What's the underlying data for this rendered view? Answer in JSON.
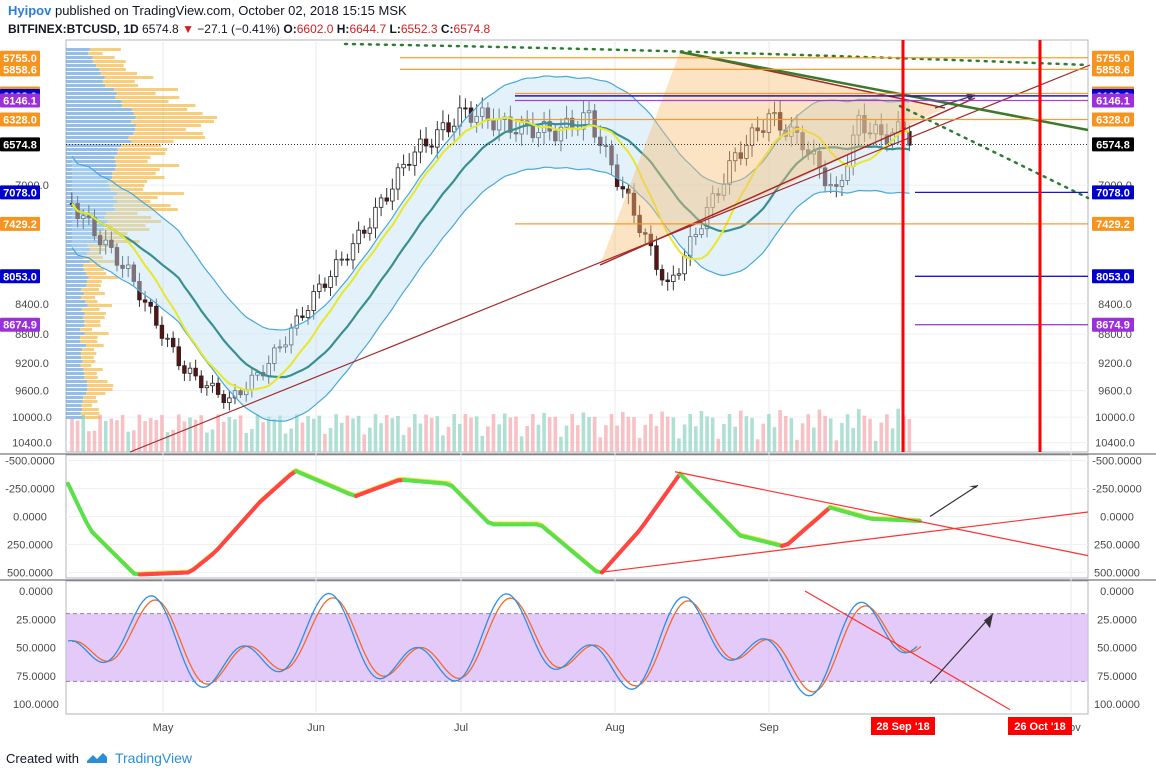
{
  "header": {
    "user": "Hyipov",
    "published": "published on TradingView.com, October 02, 2018 15:15 MSK",
    "symbol": "BITFINEX:BTCUSD, 1D",
    "last": "6574.8",
    "arrow": "▼",
    "change": "−27.1 (−0.41%)",
    "o_label": "O:",
    "o": "6602.0",
    "h_label": "H:",
    "h": "6644.7",
    "l_label": "L:",
    "l": "6552.3",
    "c_label": "C:",
    "c": "6574.8"
  },
  "footer": {
    "created": "Created with",
    "brand": "TradingView"
  },
  "colors": {
    "bull": "#26a69a",
    "bear": "#5d1212",
    "orange": "#f7941d",
    "red": "#ff0000",
    "navy": "#0000cc",
    "purple": "#9b30d9",
    "green": "#3c7a2a",
    "bbands": "#4aa8d8",
    "ema": "#e8e82a"
  },
  "chart_data": {
    "type": "candlestick",
    "x_axis": {
      "ticks": [
        "May",
        "Jun",
        "Jul",
        "Aug",
        "Sep",
        "Nov"
      ],
      "markers": [
        "28 Sep '18",
        "26 Oct '18"
      ]
    },
    "price_axis": {
      "scale": "log",
      "direction": "inverted",
      "ticks": [
        "7000.0",
        "8400.0",
        "8800.0",
        "9200.0",
        "9600.0",
        "10000.0",
        "10400.0"
      ]
    },
    "price_labels": [
      {
        "text": "5755.0",
        "color": "#f7941d"
      },
      {
        "text": "5858.6",
        "color": "#f7941d"
      },
      {
        "text": "6079.9",
        "color": "#f7941d"
      },
      {
        "text": "6100.0",
        "color": "#f7941d"
      },
      {
        "text": "6103.0",
        "color": "#0000cc"
      },
      {
        "text": "6146.1",
        "color": "#9b30d9"
      },
      {
        "text": "6328.0",
        "color": "#f7941d"
      },
      {
        "text": "6574.8",
        "color": "#000000"
      },
      {
        "text": "7078.0",
        "color": "#0000cc"
      },
      {
        "text": "7429.2",
        "color": "#f7941d"
      },
      {
        "text": "8053.0",
        "color": "#0000cc"
      },
      {
        "text": "8674.9",
        "color": "#9b30d9"
      }
    ],
    "ohlc_last": {
      "open": 6602.0,
      "high": 6644.7,
      "low": 6552.3,
      "close": 6574.8
    },
    "indicator1": {
      "ticks": [
        "-500.0000",
        "-250.0000",
        "0.0000",
        "250.0000",
        "500.0000"
      ]
    },
    "indicator2": {
      "ticks": [
        "0.0000",
        "25.0000",
        "50.0000",
        "75.0000",
        "100.0000"
      ],
      "band": [
        20,
        80
      ]
    }
  }
}
